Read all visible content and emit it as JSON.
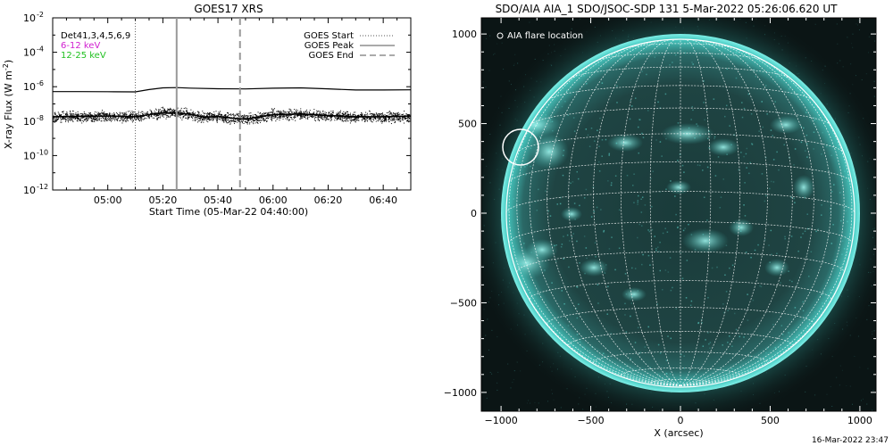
{
  "footer": {
    "timestamp": "16-Mar-2022 23:47"
  },
  "chart_data": [
    {
      "type": "line",
      "title": "GOES17 XRS",
      "xlabel": "Start Time (05-Mar-22 04:40:00)",
      "ylabel": "X-ray Flux (W m",
      "ylabel_sup": "-2",
      "ylabel_close": ")",
      "y_scale": "log",
      "ylim": [
        1e-12,
        0.01
      ],
      "xlim": [
        "04:40:00",
        "06:50:00"
      ],
      "yticks": [
        {
          "value": 1e-12,
          "base": "10",
          "exp": "-12"
        },
        {
          "value": 1e-10,
          "base": "10",
          "exp": "-10"
        },
        {
          "value": 1e-08,
          "base": "10",
          "exp": "-8"
        },
        {
          "value": 1e-06,
          "base": "10",
          "exp": "-6"
        },
        {
          "value": 0.0001,
          "base": "10",
          "exp": "-4"
        },
        {
          "value": 0.01,
          "base": "10",
          "exp": "-2"
        }
      ],
      "xticks": [
        "05:00",
        "05:20",
        "05:40",
        "06:00",
        "06:20",
        "06:40"
      ],
      "xtick_minutes": [
        20,
        40,
        60,
        80,
        100,
        120
      ],
      "energy_labels": [
        {
          "text": "Det41,3,4,5,6,9",
          "color": "#000000"
        },
        {
          "text": "6-12 keV",
          "color": "#d01fd0"
        },
        {
          "text": "12-25 keV",
          "color": "#20c020"
        }
      ],
      "legend": {
        "placement": "top-right",
        "entries": [
          {
            "name": "GOES Start",
            "style": "dotted"
          },
          {
            "name": "GOES Peak",
            "style": "solid"
          },
          {
            "name": "GOES End",
            "style": "dashed"
          }
        ]
      },
      "event_lines": [
        {
          "name": "GOES Start",
          "time": "05:10",
          "minute": 30,
          "style": "dotted"
        },
        {
          "name": "GOES Peak",
          "time": "05:25",
          "minute": 45,
          "style": "solid"
        },
        {
          "name": "GOES End",
          "time": "05:48",
          "minute": 68,
          "style": "dashed"
        }
      ],
      "series": [
        {
          "name": "Long channel",
          "x_minutes": [
            0,
            10,
            20,
            30,
            35,
            40,
            45,
            50,
            60,
            70,
            80,
            90,
            100,
            110,
            120,
            130
          ],
          "values": [
            5.2e-07,
            5.2e-07,
            5.1e-07,
            5e-07,
            6.8e-07,
            8.6e-07,
            8.9e-07,
            8.3e-07,
            7.6e-07,
            7.4e-07,
            8.2e-07,
            8.6e-07,
            7.5e-07,
            6.4e-07,
            6.4e-07,
            6.6e-07
          ]
        },
        {
          "name": "Short channel",
          "x_minutes": [
            0,
            10,
            20,
            30,
            35,
            40,
            45,
            50,
            55,
            60,
            65,
            70,
            80,
            90,
            100,
            110,
            120,
            130
          ],
          "values": [
            1.8e-08,
            1.9e-08,
            2e-08,
            1.8e-08,
            2.4e-08,
            3e-08,
            3e-08,
            2.5e-08,
            1.7e-08,
            1.9e-08,
            1.5e-08,
            1.3e-08,
            2.4e-08,
            2.6e-08,
            2.1e-08,
            1.8e-08,
            1.8e-08,
            2e-08
          ]
        }
      ]
    },
    {
      "type": "image",
      "title": "SDO/AIA AIA_1 SDO/JSOC-SDP 131  5-Mar-2022 05:26:06.620 UT",
      "xlabel": "X (arcsec)",
      "xlim": [
        -1100,
        1100
      ],
      "ylim": [
        -1100,
        1100
      ],
      "xticks": [
        -1000,
        -500,
        0,
        500,
        1000
      ],
      "yticks": [
        -1000,
        -500,
        0,
        500,
        1000
      ],
      "annotation": "AIA flare location",
      "colors": {
        "background": "#0b1515",
        "disk": "#1f4443",
        "limb_glow": "#46c8c0",
        "grid": "#ffffff"
      }
    }
  ]
}
